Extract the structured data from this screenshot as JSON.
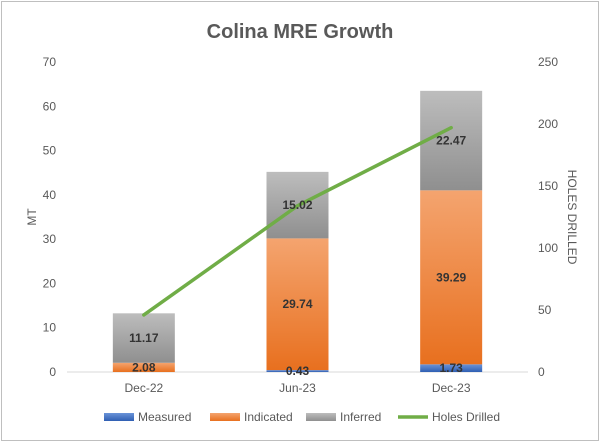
{
  "chart_data": {
    "type": "bar",
    "stacked": true,
    "title": "Colina MRE Growth",
    "categories": [
      "Dec-22",
      "Jun-23",
      "Dec-23"
    ],
    "ylabel": "MT",
    "y2label": "HOLES DRILLED",
    "ylim": [
      0,
      70
    ],
    "yticks": [
      0,
      10,
      20,
      30,
      40,
      50,
      60,
      70
    ],
    "y2lim": [
      0,
      250
    ],
    "y2ticks": [
      0,
      50,
      100,
      150,
      200,
      250
    ],
    "grid": false,
    "legend_position": "bottom",
    "series": [
      {
        "name": "Measured",
        "type": "bar",
        "axis": "left",
        "color": "#4472C4",
        "values": [
          0,
          0.43,
          1.73
        ],
        "labels": [
          "",
          "0.43",
          "1.73"
        ]
      },
      {
        "name": "Indicated",
        "type": "bar",
        "axis": "left",
        "color": "#ED7D31",
        "values": [
          2.08,
          29.74,
          39.29
        ],
        "labels": [
          "2.08",
          "29.74",
          "39.29"
        ]
      },
      {
        "name": "Inferred",
        "type": "bar",
        "axis": "left",
        "color": "#A5A5A5",
        "values": [
          11.17,
          15.02,
          22.47
        ],
        "labels": [
          "11.17",
          "15.02",
          "22.47"
        ]
      },
      {
        "name": "Holes Drilled",
        "type": "line",
        "axis": "right",
        "color": "#70AD47",
        "values": [
          46,
          134,
          197
        ]
      }
    ]
  }
}
